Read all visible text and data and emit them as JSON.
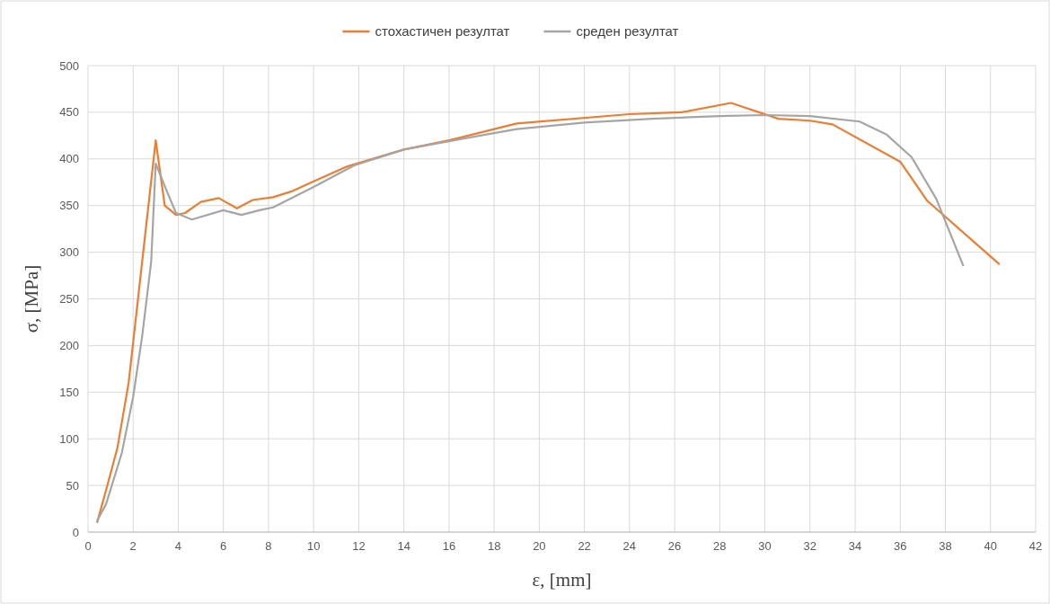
{
  "chart_data": {
    "type": "line",
    "xlabel": "ε, [mm]",
    "ylabel": "σ, [MPa]",
    "xlim": [
      0,
      42
    ],
    "ylim": [
      0,
      500
    ],
    "xticks": [
      0,
      2,
      4,
      6,
      8,
      10,
      12,
      14,
      16,
      18,
      20,
      22,
      24,
      26,
      28,
      30,
      32,
      34,
      36,
      38,
      40,
      42
    ],
    "yticks": [
      0,
      50,
      100,
      150,
      200,
      250,
      300,
      350,
      400,
      450,
      500
    ],
    "grid": true,
    "legend": "top",
    "marker": "none",
    "line_style": "solid",
    "series": [
      {
        "name": "стохастичен резултат",
        "color": "#ed7d31",
        "x": [
          0.4,
          0.8,
          1.3,
          1.8,
          2.4,
          3.0,
          3.4,
          3.9,
          4.3,
          5.0,
          5.8,
          6.6,
          7.3,
          8.2,
          9.0,
          10.0,
          11.5,
          14,
          16,
          19,
          24,
          26.3,
          28.5,
          30.6,
          32,
          33,
          36,
          37.2,
          40.4
        ],
        "values": [
          10,
          45,
          90,
          160,
          290,
          420,
          350,
          340,
          342,
          354,
          358,
          347,
          356,
          359,
          365,
          376,
          392,
          410,
          420,
          438,
          448,
          450,
          460,
          443,
          441,
          437,
          397,
          355,
          287
        ]
      },
      {
        "name": "среден резултат",
        "color": "#a5a5a5",
        "x": [
          0.4,
          0.8,
          1.5,
          2.0,
          2.4,
          2.8,
          3.0,
          3.5,
          3.9,
          4.6,
          6.0,
          6.8,
          7.6,
          8.2,
          10.0,
          11.8,
          14,
          16,
          19,
          22,
          25,
          28,
          30,
          32,
          34.2,
          35.4,
          36.5,
          37.6,
          38.8
        ],
        "values": [
          12,
          30,
          85,
          145,
          210,
          290,
          395,
          365,
          342,
          335,
          345,
          340,
          345,
          348,
          370,
          393,
          410,
          419,
          432,
          439,
          443,
          446,
          447,
          446,
          440,
          426,
          402,
          357,
          285
        ]
      }
    ]
  }
}
